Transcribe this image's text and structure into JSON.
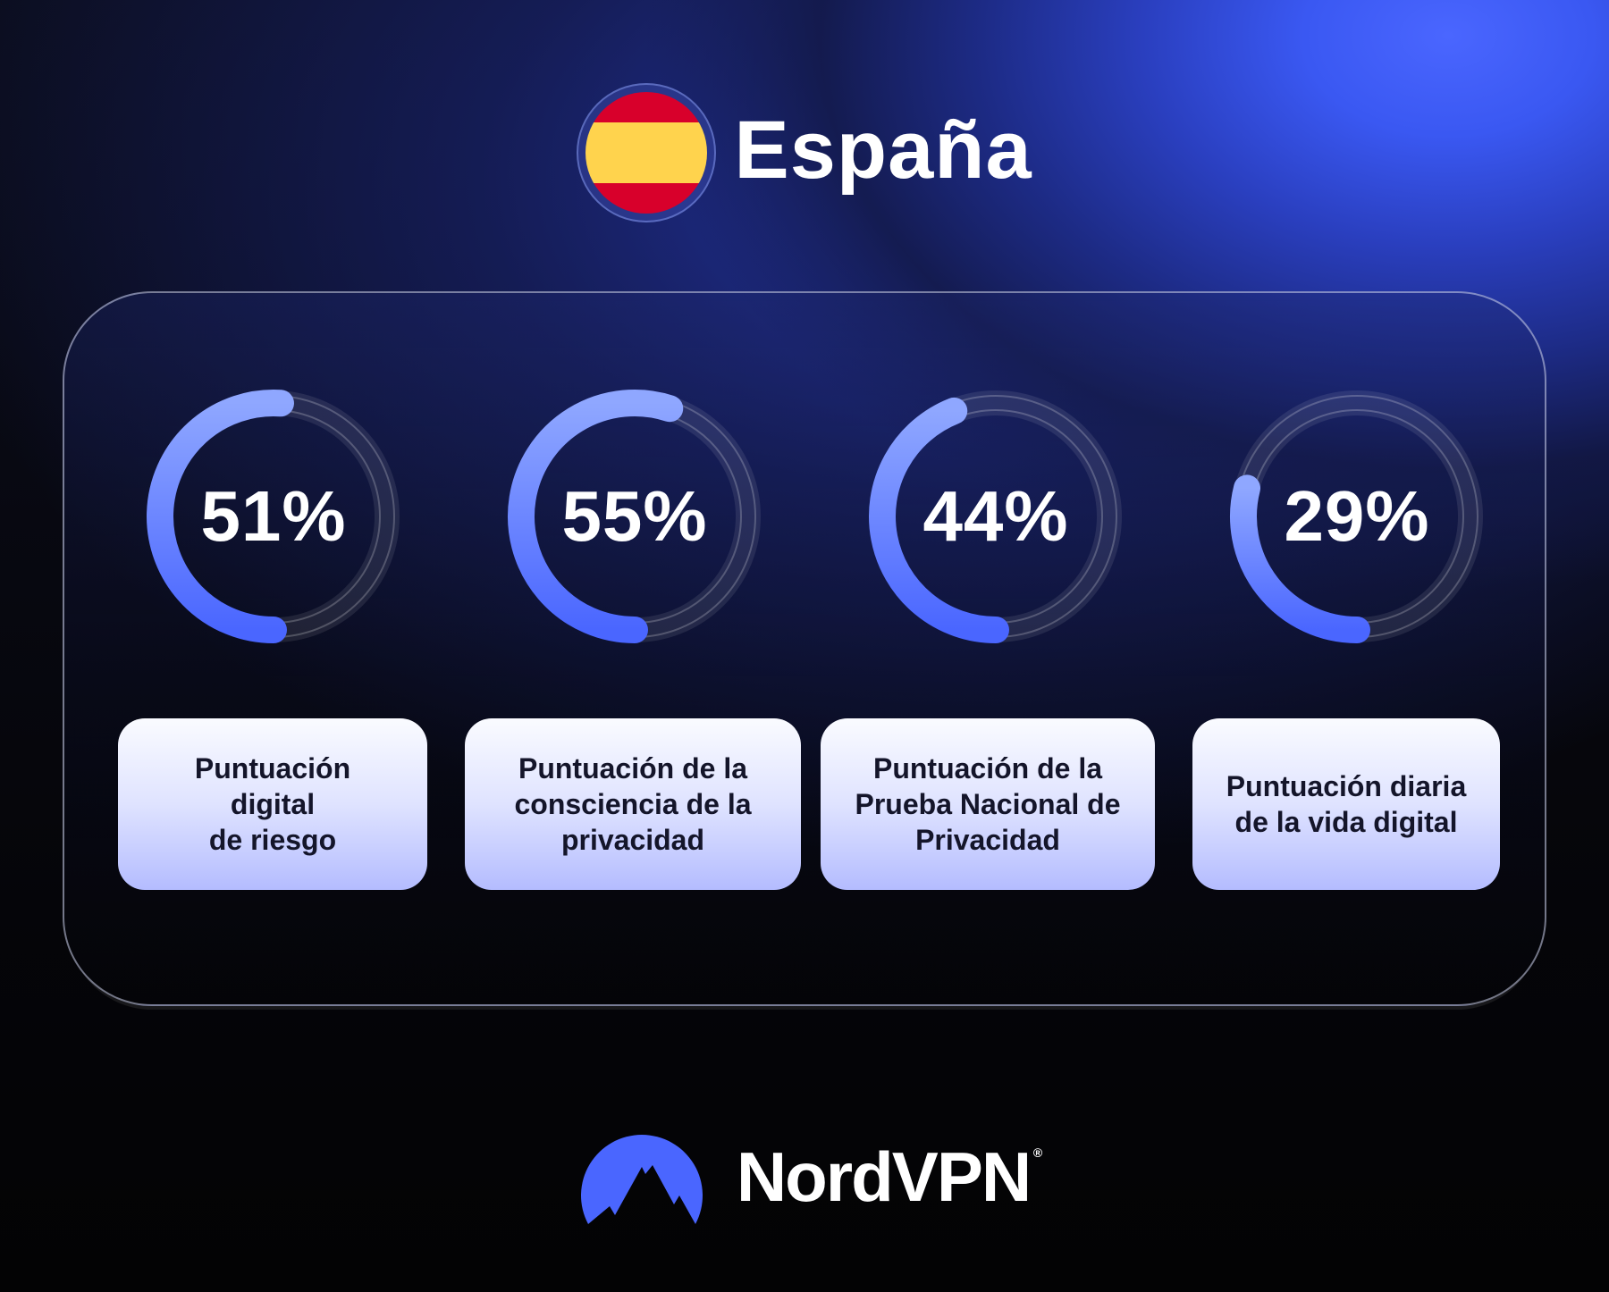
{
  "header": {
    "country": "España",
    "flag_icon": "spain-flag-icon"
  },
  "metrics": [
    {
      "value": "51%",
      "percent": 51,
      "label": "Puntuación\ndigital\nde riesgo"
    },
    {
      "value": "55%",
      "percent": 55,
      "label": "Puntuación de la\nconsciencia de la\nprivacidad"
    },
    {
      "value": "44%",
      "percent": 44,
      "label": "Puntuación de la\nPrueba Nacional de\nPrivacidad"
    },
    {
      "value": "29%",
      "percent": 29,
      "label": "Puntuación diaria\nde la vida digital"
    }
  ],
  "brand": {
    "name": "NordVPN",
    "registered": "®",
    "icon": "nordvpn-mountain-icon"
  },
  "colors": {
    "accent_blue": "#4a66ff",
    "gauge_light": "#8fa7ff",
    "flag_red": "#d8002b",
    "flag_yellow": "#ffd34d"
  }
}
